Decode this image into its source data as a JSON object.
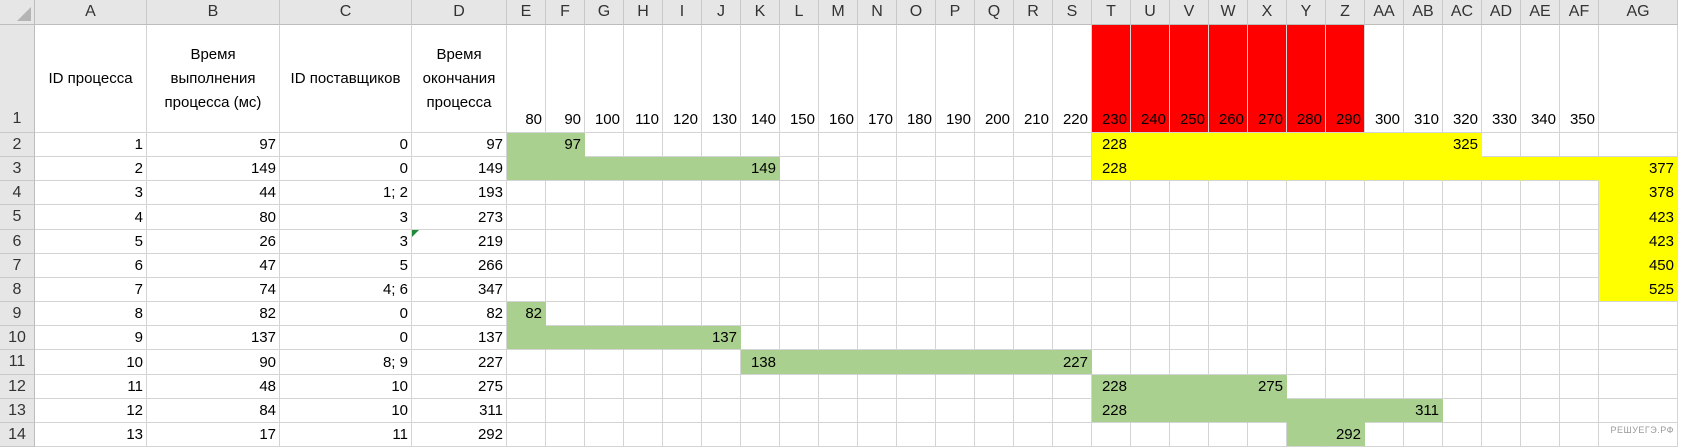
{
  "columns": [
    "A",
    "B",
    "C",
    "D",
    "E",
    "F",
    "G",
    "H",
    "I",
    "J",
    "K",
    "L",
    "M",
    "N",
    "O",
    "P",
    "Q",
    "R",
    "S",
    "T",
    "U",
    "V",
    "W",
    "X",
    "Y",
    "Z",
    "AA",
    "AB",
    "AC",
    "AD",
    "AE",
    "AF",
    "AG"
  ],
  "row_numbers": [
    "1",
    "2",
    "3",
    "4",
    "5",
    "6",
    "7",
    "8",
    "9",
    "10",
    "11",
    "12",
    "13",
    "14"
  ],
  "colors": {
    "green": "#A9D08E",
    "yellow": "#FFFF00",
    "red": "#FF0000"
  },
  "header_row": {
    "A": "ID процесса",
    "B": "Время выполнения процесса (мс)",
    "C": "ID поставщиков",
    "D": "Время окончания процесса",
    "E": "80",
    "F": "90",
    "G": "100",
    "H": "110",
    "I": "120",
    "J": "130",
    "K": "140",
    "L": "150",
    "M": "160",
    "N": "170",
    "O": "180",
    "P": "190",
    "Q": "200",
    "R": "210",
    "S": "220",
    "T": "230",
    "U": "240",
    "V": "250",
    "W": "260",
    "X": "270",
    "Y": "280",
    "Z": "290",
    "AA": "300",
    "AB": "310",
    "AC": "320",
    "AD": "330",
    "AE": "340",
    "AF": "350"
  },
  "header_fills": [
    {
      "from": "T",
      "to": "Z",
      "color": "red"
    }
  ],
  "rows": [
    {
      "cells": {
        "A": "1",
        "B": "97",
        "C": "0",
        "D": "97",
        "F": "97",
        "T": "228",
        "AC": "325"
      },
      "fills": [
        {
          "from": "E",
          "to": "F",
          "color": "green"
        },
        {
          "from": "T",
          "to": "AC",
          "color": "yellow"
        }
      ]
    },
    {
      "cells": {
        "A": "2",
        "B": "149",
        "C": "0",
        "D": "149",
        "K": "149",
        "T": "228",
        "AG": "377"
      },
      "fills": [
        {
          "from": "E",
          "to": "K",
          "color": "green"
        },
        {
          "from": "T",
          "to": "AG",
          "color": "yellow"
        }
      ]
    },
    {
      "cells": {
        "A": "3",
        "B": "44",
        "C": "1; 2",
        "D": "193",
        "AG": "378"
      },
      "fills": [
        {
          "from": "AG",
          "to": "AG",
          "color": "yellow"
        }
      ]
    },
    {
      "cells": {
        "A": "4",
        "B": "80",
        "C": "3",
        "D": "273",
        "AG": "423"
      },
      "fills": [
        {
          "from": "AG",
          "to": "AG",
          "color": "yellow"
        }
      ]
    },
    {
      "cells": {
        "A": "5",
        "B": "26",
        "C": "3",
        "D": "219",
        "AG": "423"
      },
      "fills": [
        {
          "from": "AG",
          "to": "AG",
          "color": "yellow"
        }
      ],
      "error_indicator": "D"
    },
    {
      "cells": {
        "A": "6",
        "B": "47",
        "C": "5",
        "D": "266",
        "AG": "450"
      },
      "fills": [
        {
          "from": "AG",
          "to": "AG",
          "color": "yellow"
        }
      ]
    },
    {
      "cells": {
        "A": "7",
        "B": "74",
        "C": "4; 6",
        "D": "347",
        "AG": "525"
      },
      "fills": [
        {
          "from": "AG",
          "to": "AG",
          "color": "yellow"
        }
      ]
    },
    {
      "cells": {
        "A": "8",
        "B": "82",
        "C": "0",
        "D": "82",
        "E": "82"
      },
      "fills": [
        {
          "from": "E",
          "to": "E",
          "color": "green"
        }
      ]
    },
    {
      "cells": {
        "A": "9",
        "B": "137",
        "C": "0",
        "D": "137",
        "J": "137"
      },
      "fills": [
        {
          "from": "E",
          "to": "J",
          "color": "green"
        }
      ]
    },
    {
      "cells": {
        "A": "10",
        "B": "90",
        "C": "8; 9",
        "D": "227",
        "K": "138",
        "S": "227"
      },
      "fills": [
        {
          "from": "K",
          "to": "S",
          "color": "green"
        }
      ]
    },
    {
      "cells": {
        "A": "11",
        "B": "48",
        "C": "10",
        "D": "275",
        "T": "228",
        "X": "275"
      },
      "fills": [
        {
          "from": "T",
          "to": "X",
          "color": "green"
        }
      ]
    },
    {
      "cells": {
        "A": "12",
        "B": "84",
        "C": "10",
        "D": "311",
        "T": "228",
        "AB": "311"
      },
      "fills": [
        {
          "from": "T",
          "to": "AB",
          "color": "green"
        }
      ]
    },
    {
      "cells": {
        "A": "13",
        "B": "17",
        "C": "11",
        "D": "292",
        "Z": "292"
      },
      "fills": [
        {
          "from": "Y",
          "to": "Z",
          "color": "green"
        }
      ]
    }
  ],
  "watermark": "РЕШУЕГЭ.РФ"
}
